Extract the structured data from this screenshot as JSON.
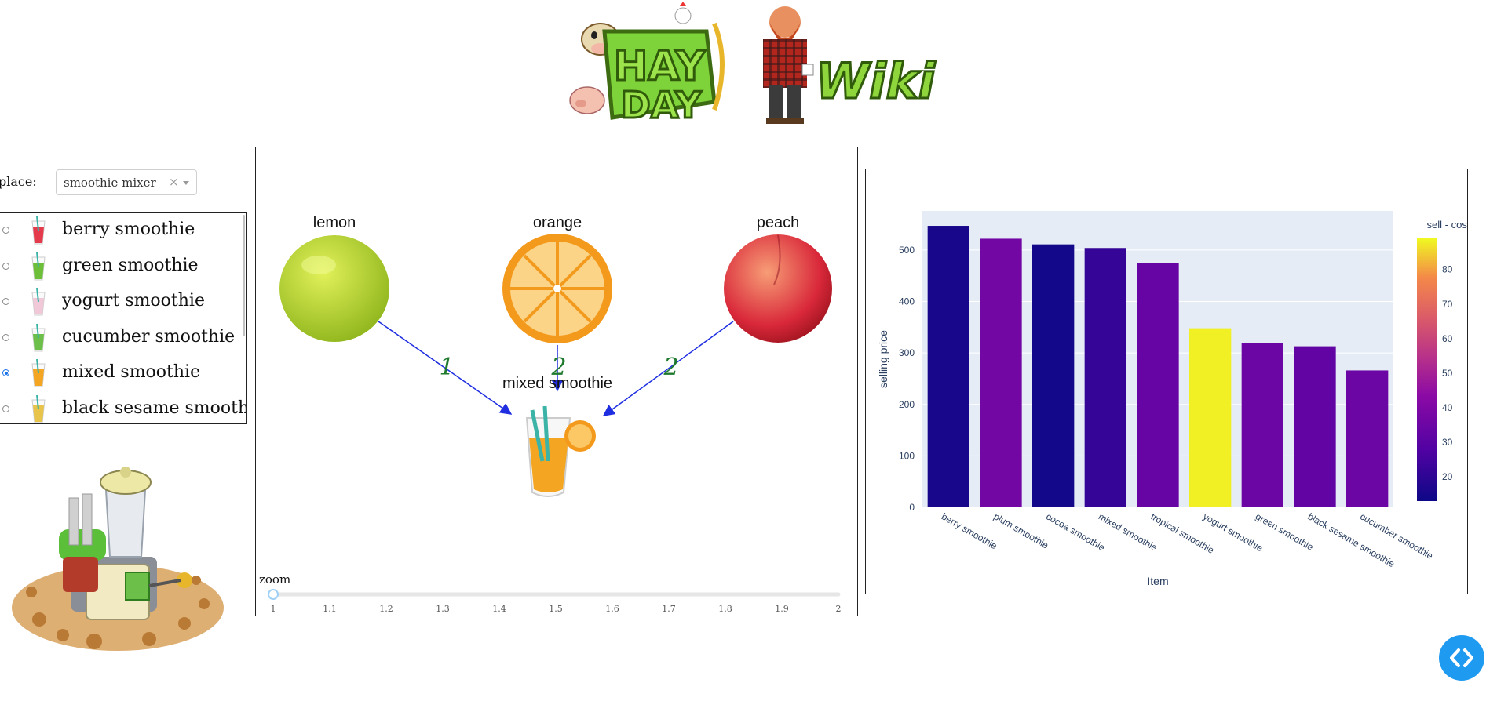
{
  "header": {
    "logo_alt": "HAY DAY Wiki"
  },
  "place": {
    "label": "place:",
    "selected": "smoothie mixer",
    "clear": "×"
  },
  "products": [
    {
      "name": "berry smoothie",
      "selected": false,
      "color": "#e53a4b"
    },
    {
      "name": "green smoothie",
      "selected": false,
      "color": "#6dbf3a"
    },
    {
      "name": "yogurt smoothie",
      "selected": false,
      "color": "#f0c8d8"
    },
    {
      "name": "cucumber smoothie",
      "selected": false,
      "color": "#6cc04a"
    },
    {
      "name": "mixed smoothie",
      "selected": true,
      "color": "#f4a623"
    },
    {
      "name": "black sesame smoothie",
      "selected": false,
      "color": "#e8c44a"
    }
  ],
  "recipe": {
    "product": "mixed smoothie",
    "ingredients": [
      {
        "name": "lemon",
        "qty": "1"
      },
      {
        "name": "orange",
        "qty": "2"
      },
      {
        "name": "peach",
        "qty": "2"
      }
    ],
    "zoom": {
      "label": "zoom",
      "value": 1,
      "min": 1,
      "max": 2,
      "ticks": [
        "1",
        "1.1",
        "1.2",
        "1.3",
        "1.4",
        "1.5",
        "1.6",
        "1.7",
        "1.8",
        "1.9",
        "2"
      ]
    }
  },
  "chart_data": {
    "type": "bar",
    "categories": [
      "berry smoothie",
      "plum smoothie",
      "cocoa smoothie",
      "mixed smoothie",
      "tropical smoothie",
      "yogurt smoothie",
      "green smoothie",
      "black sesame smoothie",
      "cucumber smoothie"
    ],
    "values": [
      547,
      522,
      511,
      504,
      475,
      348,
      320,
      313,
      266
    ],
    "color_values": [
      15,
      33,
      14,
      20,
      30,
      88,
      31,
      29,
      31
    ],
    "xlabel": "Item",
    "ylabel": "selling price",
    "ylim": [
      0,
      576
    ],
    "yticks": [
      "0",
      "100",
      "200",
      "300",
      "400",
      "500"
    ],
    "colorbar": {
      "title": "sell - cost",
      "min": 13,
      "max": 89,
      "ticks": [
        "20",
        "30",
        "40",
        "50",
        "60",
        "70",
        "80"
      ],
      "colorscale": "Plasma"
    },
    "grid": true
  },
  "colors": {
    "arrow": "#1f2ee0",
    "accent": "#1e9bf0",
    "quantity": "#1f7a2e"
  }
}
